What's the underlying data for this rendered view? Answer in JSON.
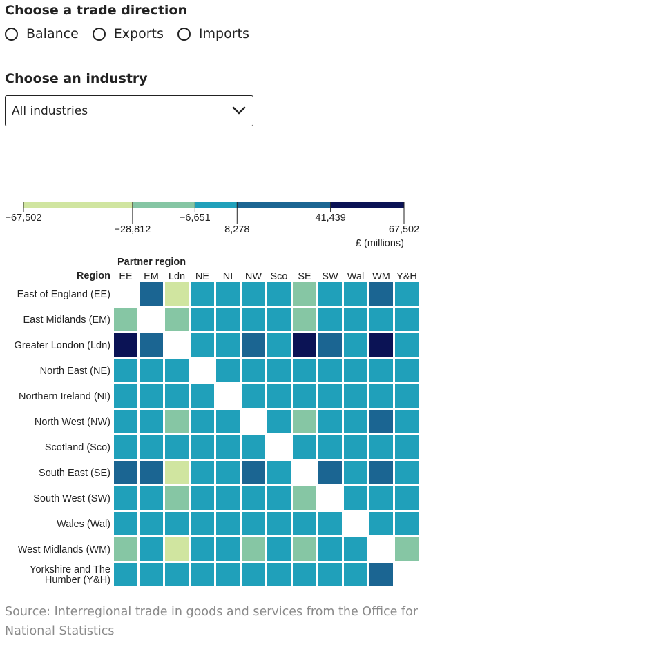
{
  "controls": {
    "direction_heading": "Choose a trade direction",
    "direction_options": [
      "Balance",
      "Exports",
      "Imports"
    ],
    "industry_heading": "Choose an industry",
    "industry_selected": "All industries"
  },
  "chart_data": {
    "type": "heatmap",
    "row_axis_label": "Region",
    "col_axis_label": "Partner region",
    "legend": {
      "thresholds": [
        -67502,
        -28812,
        -6651,
        8278,
        41439,
        67502
      ],
      "threshold_labels": [
        "−67,502",
        "−28,812",
        "−6,651",
        "8,278",
        "41,439",
        "67,502"
      ],
      "colors": [
        "#d0e5a0",
        "#86c6a4",
        "#20a0ba",
        "#1b6592",
        "#0b1355"
      ],
      "unit": "£ (millions)"
    },
    "rows": [
      "East of England (EE)",
      "East Midlands (EM)",
      "Greater London (Ldn)",
      "North East (NE)",
      "Northern Ireland (NI)",
      "North West (NW)",
      "Scotland (Sco)",
      "South East (SE)",
      "South West (SW)",
      "Wales (Wal)",
      "West Midlands (WM)",
      "Yorkshire and The Humber (Y&H)"
    ],
    "columns": [
      "EE",
      "EM",
      "Ldn",
      "NE",
      "NI",
      "NW",
      "Sco",
      "SE",
      "SW",
      "Wal",
      "WM",
      "Y&H"
    ],
    "value_bins": [
      [
        null,
        3,
        0,
        2,
        2,
        2,
        2,
        1,
        2,
        2,
        3,
        2
      ],
      [
        1,
        null,
        1,
        2,
        2,
        2,
        2,
        1,
        2,
        2,
        2,
        2
      ],
      [
        4,
        3,
        null,
        2,
        2,
        3,
        2,
        4,
        3,
        2,
        4,
        2
      ],
      [
        2,
        2,
        2,
        null,
        2,
        2,
        2,
        2,
        2,
        2,
        2,
        2
      ],
      [
        2,
        2,
        2,
        2,
        null,
        2,
        2,
        2,
        2,
        2,
        2,
        2
      ],
      [
        2,
        2,
        1,
        2,
        2,
        null,
        2,
        1,
        2,
        2,
        3,
        2
      ],
      [
        2,
        2,
        2,
        2,
        2,
        2,
        null,
        2,
        2,
        2,
        2,
        2
      ],
      [
        3,
        3,
        0,
        2,
        2,
        3,
        2,
        null,
        3,
        2,
        3,
        2
      ],
      [
        2,
        2,
        1,
        2,
        2,
        2,
        2,
        1,
        null,
        2,
        2,
        2
      ],
      [
        2,
        2,
        2,
        2,
        2,
        2,
        2,
        2,
        2,
        null,
        2,
        2
      ],
      [
        1,
        2,
        0,
        2,
        2,
        1,
        2,
        1,
        2,
        2,
        null,
        1
      ],
      [
        2,
        2,
        2,
        2,
        2,
        2,
        2,
        2,
        2,
        2,
        3,
        null
      ]
    ]
  },
  "source": "Source: Interregional trade in goods and services from the Office for National Statistics"
}
